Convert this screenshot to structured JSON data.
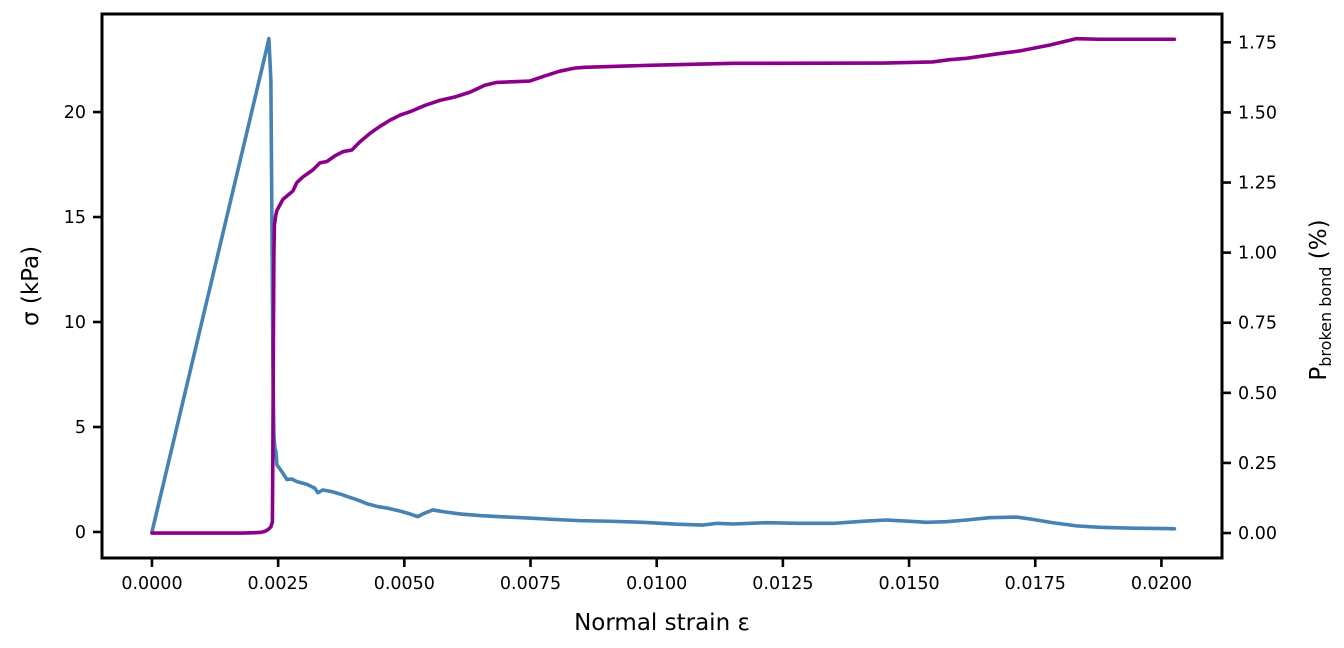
{
  "figure": {
    "background": "#ffffff",
    "text_color": "#000000",
    "x_axis": {
      "label": "Normal strain ε",
      "tick_values": [
        0.0,
        0.0025,
        0.005,
        0.0075,
        0.01,
        0.0125,
        0.015,
        0.0175,
        0.02
      ],
      "tick_labels": [
        "0.0000",
        "0.0025",
        "0.0050",
        "0.0075",
        "0.0100",
        "0.0125",
        "0.0150",
        "0.0175",
        "0.0200"
      ]
    },
    "y_axis_left": {
      "label": "σ (kPa)",
      "tick_values": [
        0,
        5,
        10,
        15,
        20
      ],
      "tick_labels": [
        "0",
        "5",
        "10",
        "15",
        "20"
      ]
    },
    "y_axis_right": {
      "label_main": "P",
      "label_sub": "broken bond",
      "label_unit": " (%)",
      "tick_values": [
        0.0,
        0.25,
        0.5,
        0.75,
        1.0,
        1.25,
        1.5,
        1.75
      ],
      "tick_labels": [
        "0.00",
        "0.25",
        "0.50",
        "0.75",
        "1.00",
        "1.25",
        "1.50",
        "1.75"
      ]
    }
  },
  "chart_data": {
    "type": "line",
    "title": "",
    "xlabel": "Normal strain ε",
    "ylabel_left": "σ (kPa)",
    "ylabel_right": "P_broken bond (%)",
    "xlim": [
      -0.00099,
      0.0212
    ],
    "ylim_left": [
      -1.24,
      24.67
    ],
    "ylim_right": [
      -0.089,
      1.851
    ],
    "grid": false,
    "legend": "none",
    "series": [
      {
        "name": "sigma",
        "axis": "left",
        "color": "#4682b4",
        "linewidth": 3.6,
        "points": [
          [
            0.0,
            0.0
          ],
          [
            0.0004,
            4.05
          ],
          [
            0.0008,
            8.1
          ],
          [
            0.0012,
            12.15
          ],
          [
            0.0016,
            16.2
          ],
          [
            0.002,
            20.25
          ],
          [
            0.00228,
            23.1
          ],
          [
            0.002317,
            23.5
          ],
          [
            0.002356,
            21.5
          ],
          [
            0.002376,
            15.0
          ],
          [
            0.002396,
            8.0
          ],
          [
            0.002416,
            4.6
          ],
          [
            0.002436,
            4.0
          ],
          [
            0.002455,
            3.85
          ],
          [
            0.002475,
            3.2
          ],
          [
            0.002574,
            2.87
          ],
          [
            0.002673,
            2.5
          ],
          [
            0.002772,
            2.52
          ],
          [
            0.002871,
            2.4
          ],
          [
            0.003069,
            2.27
          ],
          [
            0.003228,
            2.08
          ],
          [
            0.003287,
            1.87
          ],
          [
            0.003386,
            2.0
          ],
          [
            0.003564,
            1.92
          ],
          [
            0.003723,
            1.81
          ],
          [
            0.003881,
            1.68
          ],
          [
            0.004079,
            1.52
          ],
          [
            0.004277,
            1.33
          ],
          [
            0.004475,
            1.21
          ],
          [
            0.004673,
            1.13
          ],
          [
            0.004911,
            1.0
          ],
          [
            0.005109,
            0.86
          ],
          [
            0.005267,
            0.73
          ],
          [
            0.005366,
            0.86
          ],
          [
            0.005564,
            1.05
          ],
          [
            0.005762,
            0.97
          ],
          [
            0.006098,
            0.86
          ],
          [
            0.006494,
            0.78
          ],
          [
            0.00689,
            0.73
          ],
          [
            0.007425,
            0.67
          ],
          [
            0.00794,
            0.6
          ],
          [
            0.008474,
            0.54
          ],
          [
            0.009068,
            0.51
          ],
          [
            0.009722,
            0.46
          ],
          [
            0.010395,
            0.37
          ],
          [
            0.01091,
            0.33
          ],
          [
            0.011187,
            0.41
          ],
          [
            0.01151,
            0.38
          ],
          [
            0.01217,
            0.44
          ],
          [
            0.01283,
            0.41
          ],
          [
            0.01349,
            0.41
          ],
          [
            0.01415,
            0.52
          ],
          [
            0.01455,
            0.57
          ],
          [
            0.01495,
            0.52
          ],
          [
            0.01534,
            0.46
          ],
          [
            0.01574,
            0.49
          ],
          [
            0.01614,
            0.57
          ],
          [
            0.01659,
            0.68
          ],
          [
            0.01713,
            0.71
          ],
          [
            0.01745,
            0.6
          ],
          [
            0.01785,
            0.44
          ],
          [
            0.01832,
            0.29
          ],
          [
            0.01878,
            0.22
          ],
          [
            0.01943,
            0.18
          ],
          [
            0.0201,
            0.16
          ],
          [
            0.020257,
            0.15
          ]
        ]
      },
      {
        "name": "p_broken_bond",
        "axis": "right",
        "color": "#8b008b",
        "linewidth": 3.6,
        "points": [
          [
            0.0,
            0.0
          ],
          [
            0.001,
            0.0
          ],
          [
            0.0018,
            0.0
          ],
          [
            0.002139,
            0.002
          ],
          [
            0.002238,
            0.006
          ],
          [
            0.002297,
            0.012
          ],
          [
            0.002356,
            0.022
          ],
          [
            0.002386,
            0.04
          ],
          [
            0.002396,
            0.3
          ],
          [
            0.002406,
            0.7
          ],
          [
            0.002416,
            1.0
          ],
          [
            0.002426,
            1.1
          ],
          [
            0.002455,
            1.135
          ],
          [
            0.002475,
            1.15
          ],
          [
            0.002594,
            1.19
          ],
          [
            0.002792,
            1.22
          ],
          [
            0.002871,
            1.25
          ],
          [
            0.00299,
            1.27
          ],
          [
            0.003188,
            1.295
          ],
          [
            0.003327,
            1.32
          ],
          [
            0.003465,
            1.325
          ],
          [
            0.003624,
            1.345
          ],
          [
            0.003782,
            1.36
          ],
          [
            0.00396,
            1.366
          ],
          [
            0.004119,
            1.395
          ],
          [
            0.004317,
            1.425
          ],
          [
            0.004515,
            1.45
          ],
          [
            0.004713,
            1.472
          ],
          [
            0.004911,
            1.49
          ],
          [
            0.005148,
            1.505
          ],
          [
            0.005406,
            1.525
          ],
          [
            0.005703,
            1.543
          ],
          [
            0.006,
            1.555
          ],
          [
            0.006297,
            1.572
          ],
          [
            0.006594,
            1.597
          ],
          [
            0.006831,
            1.607
          ],
          [
            0.007485,
            1.612
          ],
          [
            0.007782,
            1.63
          ],
          [
            0.008078,
            1.647
          ],
          [
            0.008375,
            1.658
          ],
          [
            0.008573,
            1.661
          ],
          [
            0.00986,
            1.668
          ],
          [
            0.011504,
            1.675
          ],
          [
            0.014474,
            1.676
          ],
          [
            0.015464,
            1.68
          ],
          [
            0.015801,
            1.688
          ],
          [
            0.016137,
            1.693
          ],
          [
            0.01679,
            1.71
          ],
          [
            0.017186,
            1.719
          ],
          [
            0.01778,
            1.74
          ],
          [
            0.018315,
            1.763
          ],
          [
            0.018771,
            1.761
          ],
          [
            0.020257,
            1.761
          ]
        ]
      }
    ]
  }
}
